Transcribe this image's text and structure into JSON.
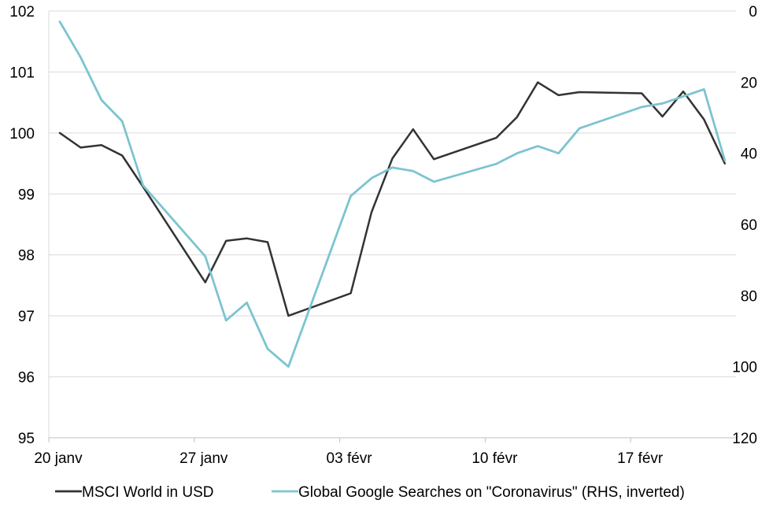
{
  "chart_data": {
    "type": "line",
    "x_axis": {
      "ticks": [
        "20 janv",
        "27 janv",
        "03 févr",
        "10 févr",
        "17 févr"
      ]
    },
    "y_left": {
      "min": 95,
      "max": 102,
      "ticks": [
        "95",
        "96",
        "97",
        "98",
        "99",
        "100",
        "101",
        "102"
      ]
    },
    "y_right": {
      "min": 0,
      "max": 120,
      "inverted": true,
      "ticks": [
        "0",
        "20",
        "40",
        "60",
        "80",
        "100",
        "120"
      ]
    },
    "grid": "horizontal",
    "legend_position": "bottom",
    "series": [
      {
        "name": "MSCI World in USD",
        "axis": "left",
        "color": "#333333",
        "points": [
          [
            "2020-01-20",
            100.0
          ],
          [
            "2020-01-21",
            99.76
          ],
          [
            "2020-01-22",
            99.8
          ],
          [
            "2020-01-23",
            99.63
          ],
          [
            "2020-01-24",
            99.12
          ],
          [
            "2020-01-27",
            97.55
          ],
          [
            "2020-01-28",
            98.23
          ],
          [
            "2020-01-29",
            98.27
          ],
          [
            "2020-01-30",
            98.21
          ],
          [
            "2020-01-31",
            97.0
          ],
          [
            "2020-02-03",
            97.37
          ],
          [
            "2020-02-04",
            98.7
          ],
          [
            "2020-02-05",
            99.58
          ],
          [
            "2020-02-06",
            100.06
          ],
          [
            "2020-02-07",
            99.57
          ],
          [
            "2020-02-10",
            99.92
          ],
          [
            "2020-02-11",
            100.26
          ],
          [
            "2020-02-12",
            100.83
          ],
          [
            "2020-02-13",
            100.62
          ],
          [
            "2020-02-14",
            100.67
          ],
          [
            "2020-02-17",
            100.65
          ],
          [
            "2020-02-18",
            100.27
          ],
          [
            "2020-02-19",
            100.68
          ],
          [
            "2020-02-20",
            100.22
          ],
          [
            "2020-02-21",
            99.5
          ]
        ]
      },
      {
        "name": "Global Google Searches on \"Coronavirus\" (RHS, inverted)",
        "axis": "right",
        "color": "#7cc4d0",
        "points": [
          [
            "2020-01-20",
            3
          ],
          [
            "2020-01-21",
            13
          ],
          [
            "2020-01-22",
            25
          ],
          [
            "2020-01-23",
            31
          ],
          [
            "2020-01-24",
            49
          ],
          [
            "2020-01-27",
            69
          ],
          [
            "2020-01-28",
            87
          ],
          [
            "2020-01-29",
            82
          ],
          [
            "2020-01-30",
            95
          ],
          [
            "2020-01-31",
            100
          ],
          [
            "2020-02-03",
            52
          ],
          [
            "2020-02-04",
            47
          ],
          [
            "2020-02-05",
            44
          ],
          [
            "2020-02-06",
            45
          ],
          [
            "2020-02-07",
            48
          ],
          [
            "2020-02-10",
            43
          ],
          [
            "2020-02-11",
            40
          ],
          [
            "2020-02-12",
            38
          ],
          [
            "2020-02-13",
            40
          ],
          [
            "2020-02-14",
            33
          ],
          [
            "2020-02-17",
            27
          ],
          [
            "2020-02-18",
            26
          ],
          [
            "2020-02-19",
            24
          ],
          [
            "2020-02-20",
            22
          ],
          [
            "2020-02-21",
            42
          ]
        ]
      }
    ]
  }
}
